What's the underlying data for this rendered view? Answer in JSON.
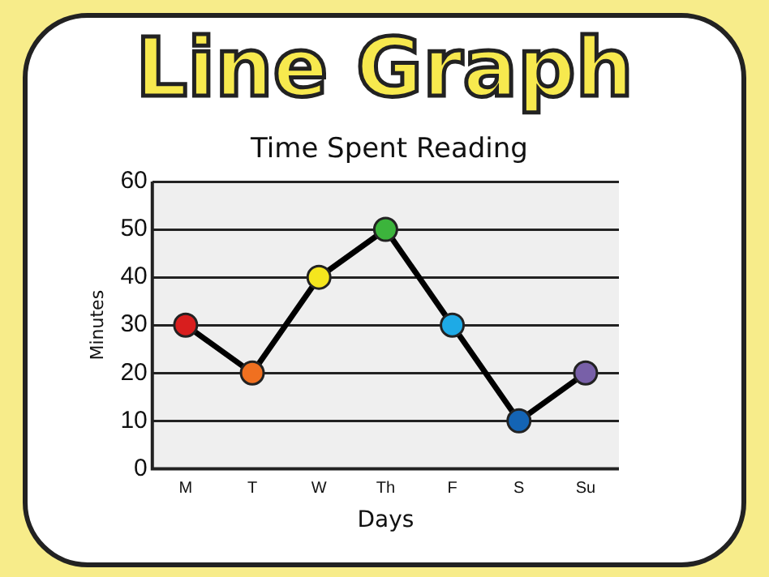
{
  "chart_data": {
    "type": "line",
    "title": "Line Graph",
    "subtitle": "Time Spent Reading",
    "xlabel": "Days",
    "ylabel": "Minutes",
    "categories": [
      "M",
      "T",
      "W",
      "Th",
      "F",
      "S",
      "Su"
    ],
    "series": [
      {
        "color": "#000000",
        "colors": [
          "#d81e1e",
          "#f07020",
          "#f5e61e",
          "#3cb43c",
          "#1eaae6",
          "#1464b4",
          "#7860a8"
        ],
        "values": [
          30,
          20,
          40,
          50,
          30,
          10,
          20
        ]
      }
    ],
    "ylim": [
      0,
      60
    ],
    "yticks": [
      0,
      10,
      20,
      30,
      40,
      50,
      60
    ],
    "grid": "y",
    "marker": "circle",
    "line_style": "solid",
    "legend": false
  }
}
